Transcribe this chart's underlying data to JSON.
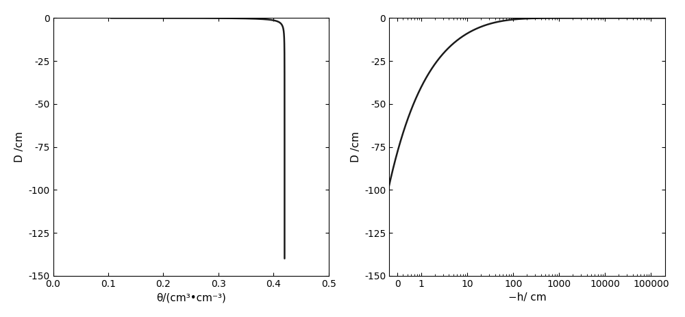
{
  "fig_width": 10.0,
  "fig_height": 4.63,
  "dpi": 100,
  "background_color": "#ffffff",
  "plot1": {
    "xlim": [
      0,
      0.5
    ],
    "ylabel": "D /cm",
    "xlabel": "θ/(㎥•cm⁻³)",
    "xlabel_text": "θ/(cm³•cm⁻³)",
    "xticks": [
      0,
      0.1,
      0.2,
      0.3,
      0.4,
      0.5
    ],
    "yticks": [
      0,
      -25,
      -50,
      -75,
      -100,
      -125,
      -150
    ],
    "ytick_labels": [
      "0",
      "-25",
      "-50",
      "-75",
      "-100",
      "-125",
      "-150"
    ]
  },
  "plot2": {
    "ylabel": "D /cm",
    "xlabel": "−h/ cm",
    "xtick_labels": [
      "0",
      "1",
      "10",
      "100",
      "1000",
      "10000",
      "100000"
    ],
    "xtick_vals": [
      0.3,
      1,
      10,
      100,
      1000,
      10000,
      100000
    ],
    "yticks": [
      0,
      -25,
      -50,
      -75,
      -100,
      -125,
      -150
    ],
    "ytick_labels": [
      "0",
      "-25",
      "-50",
      "-75",
      "-100",
      "-125",
      "-150"
    ]
  },
  "van_genuchten": {
    "theta_r": 0.1,
    "theta_s": 0.42,
    "alpha": 0.005,
    "n": 1.5,
    "Ks": 100.0
  },
  "line_color": "#1a1a1a",
  "line_width": 1.8
}
